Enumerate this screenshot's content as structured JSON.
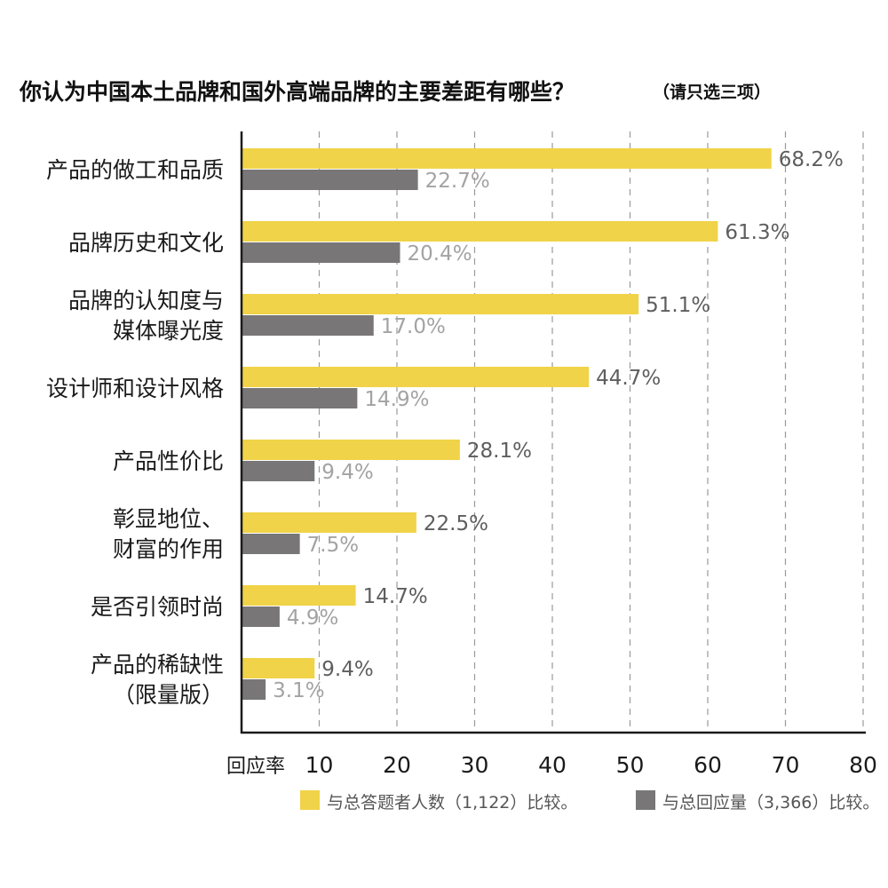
{
  "chart_data": {
    "type": "bar",
    "orientation": "horizontal",
    "title": "你认为中国本土品牌和国外高端品牌的主要差距有哪些？",
    "title_note": "（请只选三项）",
    "xlabel": "回应率",
    "xlim": [
      0,
      80
    ],
    "xticks": [
      "10",
      "20",
      "30",
      "40",
      "50",
      "60",
      "70",
      "80"
    ],
    "grid": "vertical-dashed",
    "legend_position": "bottom",
    "categories": [
      [
        "产品的做工和品质"
      ],
      [
        "品牌历史和文化"
      ],
      [
        "品牌的认知度与",
        "媒体曝光度"
      ],
      [
        "设计师和设计风格"
      ],
      [
        "产品性价比"
      ],
      [
        "彰显地位、",
        "财富的作用"
      ],
      [
        "是否引领时尚"
      ],
      [
        "产品的稀缺性",
        "（限量版）"
      ]
    ],
    "series": [
      {
        "name": "与总答题者人数（1,122）比较。",
        "color": "#f0d348",
        "values": [
          68.2,
          61.3,
          51.1,
          44.7,
          28.1,
          22.5,
          14.7,
          9.4
        ],
        "labels": [
          "68.2%",
          "61.3%",
          "51.1%",
          "44.7%",
          "28.1%",
          "22.5%",
          "14.7%",
          "9.4%"
        ]
      },
      {
        "name": "与总回应量（3,366）比较。",
        "color": "#787677",
        "values": [
          22.7,
          20.4,
          17.0,
          14.9,
          9.4,
          7.5,
          4.9,
          3.1
        ],
        "labels": [
          "22.7%",
          "20.4%",
          "17.0%",
          "14.9%",
          "9.4%",
          "7.5%",
          "4.9%",
          "3.1%"
        ]
      }
    ]
  }
}
